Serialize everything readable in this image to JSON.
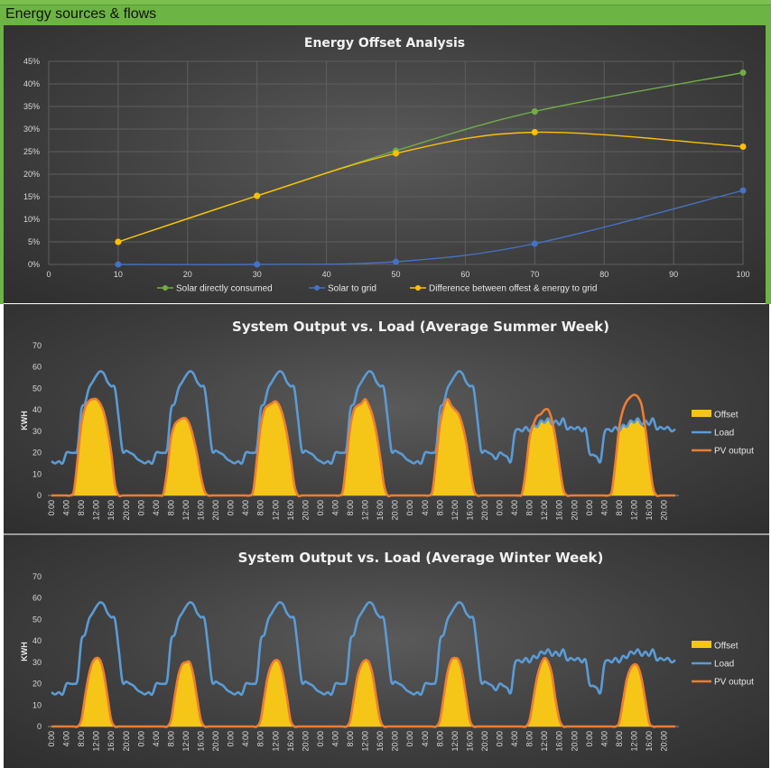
{
  "header": {
    "title": "Energy sources & flows"
  },
  "colors": {
    "header_bg": "#6cb443",
    "solar_direct": "#70ad47",
    "solar_grid": "#4472c4",
    "difference": "#ffc000",
    "offset_fill": "#f5c518",
    "load_line": "#5b9bd5",
    "pv_line": "#ed7d31"
  },
  "chart_data": [
    {
      "type": "line",
      "title": "Energy Offset Analysis",
      "x": [
        10,
        30,
        50,
        70,
        100
      ],
      "xlim": [
        0,
        100
      ],
      "xticks": [
        0,
        10,
        20,
        30,
        40,
        50,
        60,
        70,
        80,
        90,
        100
      ],
      "ylim": [
        0,
        45
      ],
      "yticks": [
        0,
        5,
        10,
        15,
        20,
        25,
        30,
        35,
        40,
        45
      ],
      "y_format": "percent",
      "grid": true,
      "legend": "bottom",
      "series": [
        {
          "name": "Solar directly consumed",
          "color": "#70ad47",
          "values": [
            5,
            15.2,
            25.2,
            33.9,
            42.5
          ]
        },
        {
          "name": "Solar to grid",
          "color": "#4472c4",
          "values": [
            0,
            0,
            0.6,
            4.6,
            16.4
          ]
        },
        {
          "name": "Difference between offest & energy to grid",
          "color": "#ffc000",
          "values": [
            5,
            15.2,
            24.6,
            29.3,
            26.1
          ]
        }
      ]
    },
    {
      "type": "area",
      "title": "System Output vs. Load (Average Summer Week)",
      "ylabel": "KWH",
      "ylim": [
        0,
        70
      ],
      "yticks": [
        0,
        10,
        20,
        30,
        40,
        50,
        60,
        70
      ],
      "xtick_labels": [
        "0:00",
        "4:00",
        "8:00",
        "12:00",
        "16:00",
        "20:00"
      ],
      "days": 7,
      "legend": "right",
      "series": [
        {
          "name": "Offset",
          "color": "#f5c518"
        },
        {
          "name": "Load",
          "color": "#5b9bd5"
        },
        {
          "name": "PV output",
          "color": "#ed7d31"
        }
      ],
      "load_weekday": [
        16,
        15,
        16,
        15,
        20,
        20,
        20,
        22,
        40,
        43,
        50,
        53,
        56,
        58,
        57,
        53,
        51,
        50,
        36,
        21,
        21,
        20,
        19,
        17
      ],
      "load_weekend": [
        20,
        19,
        18,
        16,
        29,
        31,
        30,
        32,
        30,
        33,
        32,
        35,
        34,
        36,
        33,
        35,
        33,
        36,
        31,
        32,
        31,
        32,
        30,
        31
      ],
      "pv_days": [
        [
          0,
          0,
          0,
          0,
          0,
          0,
          2,
          17,
          33,
          41,
          44,
          45,
          45,
          43,
          39,
          31,
          20,
          5,
          0,
          0,
          0,
          0,
          0,
          0
        ],
        [
          0,
          0,
          0,
          0,
          0,
          0,
          1,
          12,
          27,
          33,
          35,
          36,
          36,
          33,
          27,
          19,
          9,
          2,
          0,
          0,
          0,
          0,
          0,
          0
        ],
        [
          0,
          0,
          0,
          0,
          0,
          0,
          2,
          17,
          32,
          40,
          42,
          43,
          44,
          42,
          37,
          29,
          18,
          5,
          0,
          0,
          0,
          0,
          0,
          0
        ],
        [
          0,
          0,
          0,
          0,
          0,
          0,
          2,
          17,
          32,
          40,
          42,
          43,
          45,
          42,
          37,
          29,
          18,
          5,
          0,
          0,
          0,
          0,
          0,
          0
        ],
        [
          0,
          0,
          0,
          0,
          0,
          0,
          2,
          17,
          33,
          41,
          45,
          42,
          40,
          38,
          33,
          25,
          14,
          3,
          0,
          0,
          0,
          0,
          0,
          0
        ],
        [
          0,
          0,
          0,
          0,
          0,
          0,
          1,
          12,
          27,
          33,
          37,
          38,
          40,
          40,
          35,
          26,
          14,
          3,
          0,
          0,
          0,
          0,
          0,
          0
        ],
        [
          0,
          0,
          0,
          0,
          0,
          0,
          2,
          16,
          32,
          40,
          44,
          46,
          47,
          46,
          42,
          31,
          17,
          4,
          0,
          0,
          0,
          0,
          0,
          0
        ]
      ]
    },
    {
      "type": "area",
      "title": "System Output vs. Load (Average Winter Week)",
      "ylabel": "KWH",
      "ylim": [
        0,
        70
      ],
      "yticks": [
        0,
        10,
        20,
        30,
        40,
        50,
        60,
        70
      ],
      "xtick_labels": [
        "0:00",
        "4:00",
        "8:00",
        "12:00",
        "16:00",
        "20:00"
      ],
      "days": 7,
      "legend": "right",
      "series": [
        {
          "name": "Offset",
          "color": "#f5c518"
        },
        {
          "name": "Load",
          "color": "#5b9bd5"
        },
        {
          "name": "PV output",
          "color": "#ed7d31"
        }
      ],
      "load_weekday": [
        16,
        15,
        16,
        15,
        20,
        20,
        20,
        22,
        40,
        43,
        50,
        53,
        56,
        58,
        57,
        53,
        51,
        50,
        36,
        21,
        21,
        20,
        19,
        17
      ],
      "load_weekend": [
        20,
        19,
        18,
        16,
        29,
        31,
        30,
        32,
        30,
        33,
        32,
        35,
        34,
        36,
        33,
        35,
        33,
        36,
        31,
        32,
        31,
        32,
        30,
        31
      ],
      "pv_days": [
        [
          0,
          0,
          0,
          0,
          0,
          0,
          0,
          0,
          3,
          14,
          24,
          30,
          32,
          31,
          25,
          14,
          3,
          0,
          0,
          0,
          0,
          0,
          0,
          0
        ],
        [
          0,
          0,
          0,
          0,
          0,
          0,
          0,
          0,
          3,
          14,
          24,
          29,
          30,
          30,
          24,
          13,
          3,
          0,
          0,
          0,
          0,
          0,
          0,
          0
        ],
        [
          0,
          0,
          0,
          0,
          0,
          0,
          0,
          0,
          3,
          14,
          24,
          29,
          31,
          30,
          24,
          14,
          3,
          0,
          0,
          0,
          0,
          0,
          0,
          0
        ],
        [
          0,
          0,
          0,
          0,
          0,
          0,
          0,
          0,
          3,
          14,
          24,
          29,
          31,
          30,
          24,
          13,
          3,
          0,
          0,
          0,
          0,
          0,
          0,
          0
        ],
        [
          0,
          0,
          0,
          0,
          0,
          0,
          0,
          0,
          3,
          14,
          25,
          31,
          32,
          31,
          25,
          14,
          3,
          0,
          0,
          0,
          0,
          0,
          0,
          0
        ],
        [
          0,
          0,
          0,
          0,
          0,
          0,
          0,
          0,
          3,
          13,
          23,
          29,
          32,
          30,
          24,
          12,
          3,
          0,
          0,
          0,
          0,
          0,
          0,
          0
        ],
        [
          0,
          0,
          0,
          0,
          0,
          0,
          0,
          0,
          2,
          12,
          22,
          27,
          29,
          28,
          22,
          12,
          2,
          0,
          0,
          0,
          0,
          0,
          0,
          0
        ]
      ]
    }
  ]
}
